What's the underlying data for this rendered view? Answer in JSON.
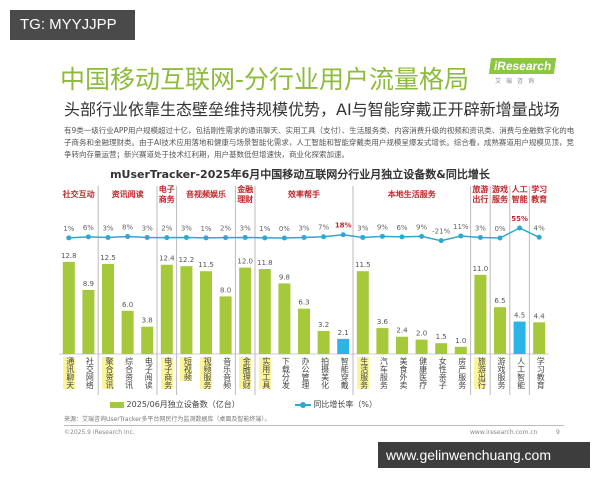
{
  "watermarks": {
    "top_left": "TG: MYYJJPP",
    "bottom_right": "www.gelinwenchuang.com"
  },
  "slide": {
    "title": "中国移动互联网-分行业用户流量格局",
    "logo": "iResearch",
    "logo_sub": "艾瑞咨询",
    "subtitle": "头部行业依靠生态壁垒维持规模优势，AI与智能穿戴正开辟新增量战场",
    "body": "有9类一级行业APP用户规模超过十亿，包括刚性需求的通讯聊天、实用工具（支付）、生活服务类、内容消费升级的视频和资讯类、消费与金融数字化的电子商务和金融理财类。由于AI技术应用落地和健康与场景智能化需求，人工智能和智能穿戴类用户规模呈爆发式增长。综合看，成熟赛道用户规模见顶，竞争转向存量运营；新兴赛道处于技术红利期，用户基数低但增速快，商业化探索加速。",
    "source": "来源：艾瑞咨询UserTracker多平台网民行为监测数据库（桌面及智能终端）。",
    "copyright": "©2025.9 iResearch Inc.",
    "site": "www.iresearch.com.cn",
    "page": "9"
  },
  "chart_data": {
    "type": "bar+line",
    "title": "mUserTracker-2025年6月中国移动互联网分行业月独立设备数&同比增长",
    "legend": {
      "bar": "2025/06月独立设备数（亿台）",
      "line": "同比增长率（%）",
      "placement": "bottom"
    },
    "colors": {
      "bar": "#a5c93a",
      "highlight_bar": "#29b6e6",
      "line": "#2ea8cf",
      "highlight_label": "#fbf59a",
      "group_label": "#c0282d"
    },
    "groups": [
      {
        "name": "社交互动",
        "count": 2
      },
      {
        "name": "资讯阅读",
        "count": 3
      },
      {
        "name": "电子商务",
        "count": 1
      },
      {
        "name": "音视频娱乐",
        "count": 3
      },
      {
        "name": "金融理财",
        "count": 1
      },
      {
        "name": "效率帮手",
        "count": 5
      },
      {
        "name": "本地生活服务",
        "count": 6
      },
      {
        "name": "旅游出行",
        "count": 1
      },
      {
        "name": "游戏服务",
        "count": 1
      },
      {
        "name": "人工智能",
        "count": 1
      },
      {
        "name": "学习教育",
        "count": 1
      }
    ],
    "categories": [
      "通讯聊天",
      "社交网络",
      "聚合资讯",
      "综合资讯",
      "电子阅读",
      "电子商务",
      "短视频",
      "视频服务",
      "音乐音频",
      "金融理财",
      "实用工具",
      "下载分发",
      "办公管理",
      "拍摄美化",
      "智能穿戴",
      "生活服务",
      "汽车服务",
      "美食外卖",
      "健康医疗",
      "女性亲子",
      "房产服务",
      "旅游出行",
      "游戏服务",
      "人工智能",
      "学习教育"
    ],
    "devices": [
      12.8,
      8.9,
      12.5,
      6.0,
      3.8,
      12.4,
      12.2,
      11.5,
      8.0,
      12.0,
      11.8,
      9.8,
      6.3,
      3.2,
      2.1,
      11.5,
      3.6,
      2.4,
      2.0,
      1.5,
      1.0,
      11.0,
      6.5,
      4.5,
      4.4
    ],
    "growth_pct": [
      1,
      6,
      3,
      8,
      3,
      2,
      3,
      1,
      2,
      3,
      1,
      0,
      3,
      7,
      18,
      3,
      9,
      6,
      9,
      -21,
      11,
      3,
      0,
      55,
      4
    ],
    "highlighted_categories": [
      "通讯聊天",
      "聚合资讯",
      "电子商务",
      "短视频",
      "视频服务",
      "金融理财",
      "实用工具",
      "生活服务",
      "旅游出行"
    ],
    "highlighted_bars": [
      "智能穿戴",
      "人工智能"
    ],
    "highlighted_growth": [
      "智能穿戴",
      "人工智能"
    ]
  }
}
